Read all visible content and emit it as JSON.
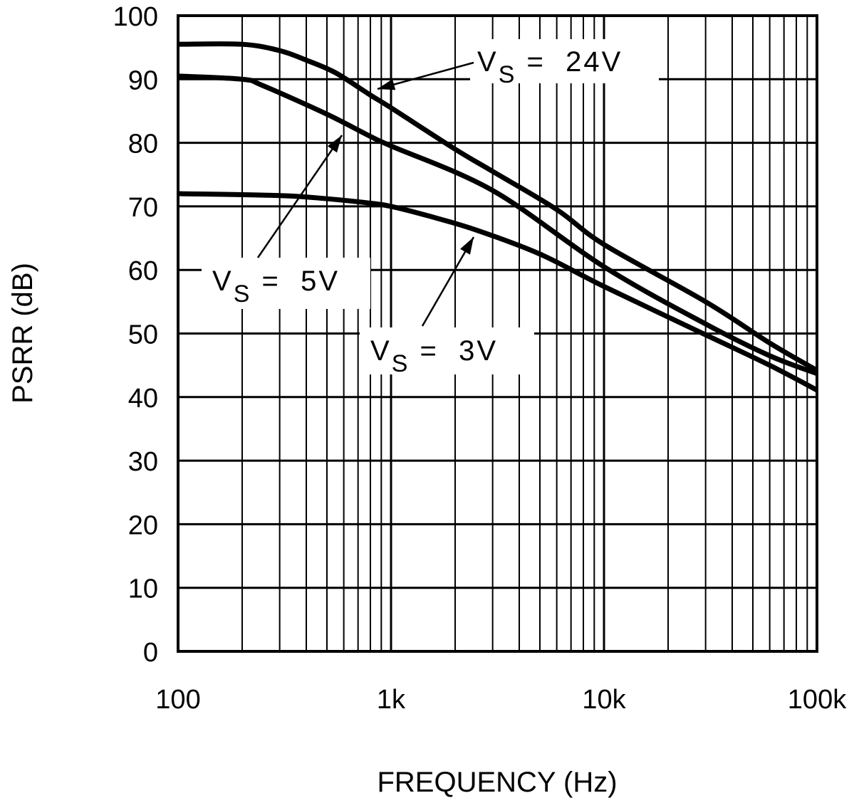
{
  "chart_data": {
    "type": "line",
    "title": "",
    "xlabel": "FREQUENCY (Hz)",
    "ylabel": "PSRR (dB)",
    "x_scale": "log",
    "xlim": [
      100,
      100000
    ],
    "ylim": [
      0,
      100
    ],
    "grid": true,
    "x_tick_values": [
      100,
      1000,
      10000,
      100000
    ],
    "x_tick_labels": [
      "100",
      "1k",
      "10k",
      "100k"
    ],
    "y_ticks": [
      0,
      10,
      20,
      30,
      40,
      50,
      60,
      70,
      80,
      90,
      100
    ],
    "y_tick_labels": [
      "0",
      "10",
      "20",
      "30",
      "40",
      "50",
      "60",
      "70",
      "80",
      "90",
      "100"
    ],
    "series": [
      {
        "name": "VS = 24V",
        "x": [
          100,
          200,
          300,
          400,
          550,
          800,
          1000,
          2000,
          3000,
          6000,
          10000,
          30000,
          60000,
          100000
        ],
        "y": [
          95.5,
          95.5,
          94.5,
          93,
          91,
          87.5,
          85.5,
          79,
          75.5,
          69.5,
          64,
          55,
          48.5,
          44.2
        ]
      },
      {
        "name": "VS = 5V",
        "x": [
          100,
          200,
          250,
          500,
          800,
          1000,
          3000,
          10000,
          30000,
          60000,
          100000
        ],
        "y": [
          90.5,
          90,
          89,
          84.5,
          81,
          79.5,
          72.5,
          60.5,
          51.5,
          46.5,
          43.7
        ]
      },
      {
        "name": "VS = 3V",
        "x": [
          100,
          300,
          500,
          800,
          1000,
          1500,
          2500,
          5000,
          10000,
          30000,
          60000,
          100000
        ],
        "y": [
          72,
          71.7,
          71.2,
          70.5,
          70,
          68.5,
          66.3,
          62.5,
          57.4,
          49.8,
          45,
          41.1
        ]
      }
    ],
    "annotations": [
      {
        "series": "VS = 24V",
        "main": "V",
        "sub": "S",
        "rest": "=  24V"
      },
      {
        "series": "VS = 5V",
        "main": "V",
        "sub": "S",
        "rest": "=  5V"
      },
      {
        "series": "VS = 3V",
        "main": "V",
        "sub": "S",
        "rest": "=  3V"
      }
    ]
  }
}
